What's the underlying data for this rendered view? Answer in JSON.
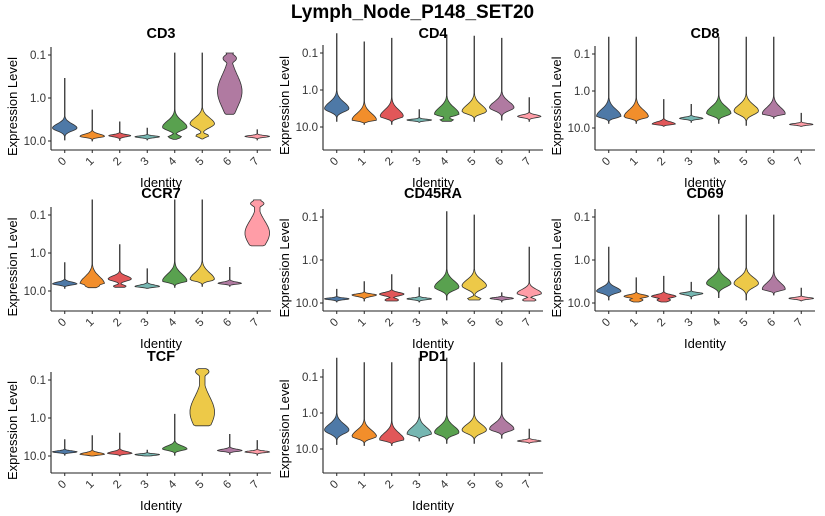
{
  "title": "Lymph_Node_P148_SET20",
  "chart_data": [
    {
      "type": "violin",
      "title": "CD3",
      "xlabel": "Identity",
      "ylabel": "Expression Level",
      "scale": "log10",
      "yticks": [
        "0.1",
        "1.0",
        "10.0"
      ],
      "categories": [
        "0",
        "1",
        "2",
        "3",
        "4",
        "5",
        "6",
        "7"
      ],
      "groups": [
        {
          "min": 0.35,
          "max": 9.5,
          "mode": 5.0,
          "w": 0.95
        },
        {
          "min": 1.9,
          "max": 10.0,
          "mode": 7.8,
          "w": 0.95
        },
        {
          "min": 3.6,
          "max": 9.7,
          "mode": 7.5,
          "w": 0.85
        },
        {
          "min": 5.0,
          "max": 9.5,
          "mode": 8.0,
          "w": 0.95
        },
        {
          "min": 0.09,
          "max": 9.2,
          "mode": 4.8,
          "w": 0.95,
          "shoulder": 8.0
        },
        {
          "min": 0.09,
          "max": 9.0,
          "mode": 4.0,
          "w": 0.95,
          "shoulder": 7.5
        },
        {
          "min": 0.09,
          "max": 2.4,
          "mode": 0.7,
          "w": 0.95,
          "bulb": 0.12
        },
        {
          "min": 5.5,
          "max": 9.5,
          "mode": 7.8,
          "w": 0.95
        }
      ]
    },
    {
      "type": "violin",
      "title": "CD4",
      "xlabel": "Identity",
      "ylabel": "Expression Level",
      "scale": "log10",
      "yticks": [
        "0.1",
        "1.0",
        "10.0"
      ],
      "categories": [
        "0",
        "1",
        "2",
        "3",
        "4",
        "5",
        "6",
        "7"
      ],
      "groups": [
        {
          "min": 0.03,
          "max": 7.0,
          "mode": 3.2,
          "w": 0.95
        },
        {
          "min": 0.05,
          "max": 8.5,
          "mode": 6.5,
          "w": 0.95
        },
        {
          "min": 0.04,
          "max": 8.5,
          "mode": 5.2,
          "w": 0.9
        },
        {
          "min": 3.4,
          "max": 7.5,
          "mode": 6.5,
          "w": 0.95
        },
        {
          "min": 0.035,
          "max": 7.0,
          "mode": 4.5,
          "w": 0.95,
          "shoulder": 6.5
        },
        {
          "min": 0.035,
          "max": 7.0,
          "mode": 3.8,
          "w": 0.95
        },
        {
          "min": 0.04,
          "max": 6.5,
          "mode": 3.0,
          "w": 0.95
        },
        {
          "min": 1.6,
          "max": 7.0,
          "mode": 5.2,
          "w": 0.9
        }
      ]
    },
    {
      "type": "violin",
      "title": "CD8",
      "xlabel": "Identity",
      "ylabel": "Expression Level",
      "scale": "log10",
      "yticks": [
        "0.1",
        "1.0",
        "10.0"
      ],
      "categories": [
        "0",
        "1",
        "2",
        "3",
        "4",
        "5",
        "6",
        "7"
      ],
      "groups": [
        {
          "min": 0.035,
          "max": 7.5,
          "mode": 4.8,
          "w": 0.95
        },
        {
          "min": 0.035,
          "max": 7.5,
          "mode": 5.0,
          "w": 0.95
        },
        {
          "min": 1.7,
          "max": 9.0,
          "mode": 7.8,
          "w": 0.9
        },
        {
          "min": 2.3,
          "max": 7.0,
          "mode": 5.5,
          "w": 0.9
        },
        {
          "min": 0.035,
          "max": 7.5,
          "mode": 4.0,
          "w": 0.95
        },
        {
          "min": 0.035,
          "max": 8.5,
          "mode": 3.5,
          "w": 0.95
        },
        {
          "min": 0.035,
          "max": 5.5,
          "mode": 4.2,
          "w": 0.9
        },
        {
          "min": 4.0,
          "max": 9.0,
          "mode": 8.0,
          "w": 0.9
        }
      ]
    },
    {
      "type": "violin",
      "title": "CCR7",
      "xlabel": "Identity",
      "ylabel": "Expression Level",
      "scale": "log10",
      "yticks": [
        "0.1",
        "1.0",
        "10.0"
      ],
      "categories": [
        "0",
        "1",
        "2",
        "3",
        "4",
        "5",
        "6",
        "7"
      ],
      "groups": [
        {
          "min": 1.8,
          "max": 8.5,
          "mode": 6.5,
          "w": 0.95
        },
        {
          "min": 0.04,
          "max": 8.2,
          "mode": 6.5,
          "w": 0.95,
          "shoulder": 7.5
        },
        {
          "min": 0.6,
          "max": 8.0,
          "mode": 4.8,
          "w": 0.9,
          "shoulder": 7.5
        },
        {
          "min": 2.6,
          "max": 8.5,
          "mode": 7.6,
          "w": 0.95
        },
        {
          "min": 0.04,
          "max": 8.0,
          "mode": 5.5,
          "w": 0.95
        },
        {
          "min": 0.04,
          "max": 7.5,
          "mode": 5.0,
          "w": 0.95
        },
        {
          "min": 2.4,
          "max": 7.5,
          "mode": 6.3,
          "w": 0.9
        },
        {
          "min": 0.04,
          "max": 0.65,
          "mode": 0.3,
          "w": 0.95,
          "bulb": 0.05
        }
      ]
    },
    {
      "type": "violin",
      "title": "CD45RA",
      "xlabel": "Identity",
      "ylabel": "Expression Level",
      "scale": "log10",
      "yticks": [
        "0.1",
        "1.0",
        "10.0"
      ],
      "categories": [
        "0",
        "1",
        "2",
        "3",
        "4",
        "5",
        "6",
        "7"
      ],
      "groups": [
        {
          "min": 4.8,
          "max": 9.5,
          "mode": 8.0,
          "w": 0.95
        },
        {
          "min": 3.2,
          "max": 9.0,
          "mode": 6.5,
          "w": 0.95
        },
        {
          "min": 2.2,
          "max": 9.0,
          "mode": 6.2,
          "w": 0.95,
          "shoulder": 8.5
        },
        {
          "min": 4.4,
          "max": 9.5,
          "mode": 8.0,
          "w": 0.95
        },
        {
          "min": 0.075,
          "max": 8.5,
          "mode": 4.3,
          "w": 0.95
        },
        {
          "min": 0.09,
          "max": 8.5,
          "mode": 4.0,
          "w": 0.95,
          "shoulder": 8.0
        },
        {
          "min": 5.8,
          "max": 9.5,
          "mode": 7.8,
          "w": 0.9
        },
        {
          "min": 0.5,
          "max": 9.0,
          "mode": 6.0,
          "w": 0.95,
          "shoulder": 8.5
        }
      ]
    },
    {
      "type": "violin",
      "title": "CD69",
      "xlabel": "Identity",
      "ylabel": "Expression Level",
      "scale": "log10",
      "yticks": [
        "0.1",
        "1.0",
        "10.0"
      ],
      "categories": [
        "0",
        "1",
        "2",
        "3",
        "4",
        "5",
        "6",
        "7"
      ],
      "groups": [
        {
          "min": 0.5,
          "max": 8.5,
          "mode": 5.3,
          "w": 0.95
        },
        {
          "min": 2.6,
          "max": 9.5,
          "mode": 7.0,
          "w": 0.95,
          "shoulder": 8.5
        },
        {
          "min": 2.4,
          "max": 9.5,
          "mode": 7.0,
          "w": 0.95,
          "shoulder": 8.5
        },
        {
          "min": 3.3,
          "max": 8.0,
          "mode": 6.0,
          "w": 0.9
        },
        {
          "min": 0.09,
          "max": 7.5,
          "mode": 3.5,
          "w": 0.95
        },
        {
          "min": 0.09,
          "max": 8.5,
          "mode": 3.5,
          "w": 0.95
        },
        {
          "min": 0.09,
          "max": 6.5,
          "mode": 4.8,
          "w": 0.9
        },
        {
          "min": 4.5,
          "max": 9.0,
          "mode": 7.8,
          "w": 0.95
        }
      ]
    },
    {
      "type": "violin",
      "title": "TCF",
      "xlabel": "Identity",
      "ylabel": "Expression Level",
      "scale": "log10",
      "yticks": [
        "0.1",
        "1.0",
        "10.0"
      ],
      "categories": [
        "0",
        "1",
        "2",
        "3",
        "4",
        "5",
        "6",
        "7"
      ],
      "groups": [
        {
          "min": 3.7,
          "max": 9.5,
          "mode": 7.8,
          "w": 0.95
        },
        {
          "min": 2.9,
          "max": 10.0,
          "mode": 9.0,
          "w": 0.95
        },
        {
          "min": 2.5,
          "max": 10.0,
          "mode": 8.5,
          "w": 0.95
        },
        {
          "min": 7.0,
          "max": 10.0,
          "mode": 9.2,
          "w": 0.95
        },
        {
          "min": 0.8,
          "max": 9.5,
          "mode": 6.5,
          "w": 0.95
        },
        {
          "min": 0.05,
          "max": 1.6,
          "mode": 0.7,
          "w": 0.95,
          "bulb": 0.06
        },
        {
          "min": 2.7,
          "max": 9.0,
          "mode": 7.2,
          "w": 0.95
        },
        {
          "min": 3.9,
          "max": 9.5,
          "mode": 7.8,
          "w": 0.95
        }
      ]
    },
    {
      "type": "violin",
      "title": "PD1",
      "xlabel": "Identity",
      "ylabel": "Expression Level",
      "scale": "log10",
      "yticks": [
        "0.1",
        "1.0",
        "10.0"
      ],
      "categories": [
        "0",
        "1",
        "2",
        "3",
        "4",
        "5",
        "6",
        "7"
      ],
      "groups": [
        {
          "min": 0.03,
          "max": 7.5,
          "mode": 3.0,
          "w": 0.95
        },
        {
          "min": 0.04,
          "max": 8.0,
          "mode": 4.5,
          "w": 0.95
        },
        {
          "min": 0.04,
          "max": 8.0,
          "mode": 5.5,
          "w": 0.95
        },
        {
          "min": 0.03,
          "max": 6.0,
          "mode": 3.8,
          "w": 0.95
        },
        {
          "min": 0.03,
          "max": 7.0,
          "mode": 3.5,
          "w": 0.95
        },
        {
          "min": 0.04,
          "max": 7.0,
          "mode": 3.0,
          "w": 0.95
        },
        {
          "min": 0.04,
          "max": 5.0,
          "mode": 2.8,
          "w": 0.95
        },
        {
          "min": 2.8,
          "max": 7.0,
          "mode": 6.0,
          "w": 0.9
        }
      ]
    }
  ],
  "palette": [
    "#4E79A7",
    "#F28E2B",
    "#E15759",
    "#76B7B2",
    "#59A14F",
    "#EDC948",
    "#B07AA1",
    "#FF9DA7"
  ]
}
